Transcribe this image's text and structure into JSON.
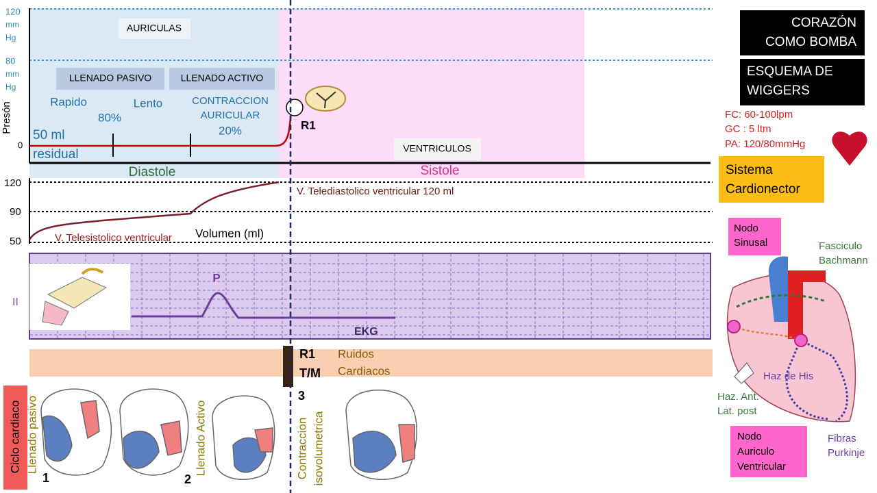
{
  "pressure": {
    "axis_label": "Presón",
    "tick_120": [
      "120",
      "mm",
      "Hg"
    ],
    "tick_80": [
      "80",
      "mm",
      "Hg"
    ],
    "tick_0": "0",
    "auriculas": "AURICULAS",
    "llenado_pasivo": "LLENADO PASIVO",
    "llenado_activo": "LLENADO ACTIVO",
    "rapido": "Rapido",
    "rapido_pct": "80%",
    "lento": "Lento",
    "contraccion": [
      "CONTRACCION",
      "AURICULAR",
      "20%"
    ],
    "residual": [
      "50 ml",
      "residual"
    ],
    "r1": "R1",
    "ventriculos": "VENTRICULOS",
    "diastole": "Diastole",
    "sistole": "Sistole"
  },
  "volume": {
    "ticks": [
      "120",
      "90",
      "50"
    ],
    "telediastolico": "V. Telediastolico ventricular 120 ml",
    "telesistolico": "V. Telesistolico ventricular",
    "label": "Volumen (ml)"
  },
  "ekg": {
    "lead": "II",
    "p_wave": "P",
    "label": "EKG"
  },
  "sounds": {
    "r1": "R1",
    "tm": "T/M",
    "label": [
      "Ruidos",
      "Cardiacos"
    ]
  },
  "cycle": {
    "label": "Ciclo cardiaco",
    "phases": [
      {
        "name": [
          "Llenado pasivo"
        ],
        "number": "1"
      },
      {
        "name": [
          "Llenado Activo"
        ],
        "number": "2"
      },
      {
        "name": [
          "Contraccion",
          "isovolumetrica"
        ],
        "number": "3"
      }
    ]
  },
  "sidebar": {
    "title": [
      "CORAZÓN",
      "COMO BOMBA"
    ],
    "subtitle": [
      "ESQUEMA DE",
      "WIGGERS"
    ],
    "stats": [
      "FC: 60-100lpm",
      "GC : 5 ltm",
      "PA: 120/80mmHg"
    ],
    "system": [
      "Sistema",
      "Cardionector"
    ],
    "nodo_sinusal": [
      "Nodo",
      "Sinusal"
    ],
    "bachmann": [
      "Fasciculo",
      "Bachmann"
    ],
    "his": "Haz de His",
    "haz_ant": [
      "Haz. Ant.",
      "Lat. post"
    ],
    "nodo_av": [
      "Nodo",
      "Auriculo",
      "Ventricular"
    ],
    "purkinje": [
      "Fibras",
      "Purkinje"
    ]
  }
}
